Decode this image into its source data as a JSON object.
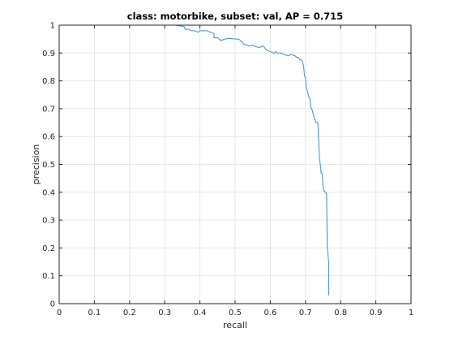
{
  "chart_data": {
    "type": "line",
    "title": "class: motorbike, subset: val, AP = 0.715",
    "xlabel": "recall",
    "ylabel": "precision",
    "xlim": [
      0,
      1
    ],
    "ylim": [
      0,
      1
    ],
    "xticks": [
      "0",
      "0.1",
      "0.2",
      "0.3",
      "0.4",
      "0.5",
      "0.6",
      "0.7",
      "0.8",
      "0.9",
      "1"
    ],
    "yticks": [
      "0",
      "0.1",
      "0.2",
      "0.3",
      "0.4",
      "0.5",
      "0.6",
      "0.7",
      "0.8",
      "0.9",
      "1"
    ],
    "grid": true,
    "line_color": "#3a8fd0",
    "series": [
      {
        "x": [
          0,
          0.05,
          0.1,
          0.15,
          0.2,
          0.25,
          0.3,
          0.33,
          0.355,
          0.358,
          0.37,
          0.375,
          0.385,
          0.395,
          0.4,
          0.42,
          0.43,
          0.44,
          0.44,
          0.45,
          0.455,
          0.46,
          0.47,
          0.48,
          0.49,
          0.5,
          0.51,
          0.52,
          0.525,
          0.53,
          0.54,
          0.55,
          0.56,
          0.57,
          0.58,
          0.59,
          0.6,
          0.61,
          0.615,
          0.62,
          0.63,
          0.64,
          0.65,
          0.66,
          0.67,
          0.675,
          0.68,
          0.685,
          0.69,
          0.693,
          0.695,
          0.697,
          0.7,
          0.702,
          0.704,
          0.706,
          0.708,
          0.71,
          0.712,
          0.714,
          0.716,
          0.718,
          0.72,
          0.722,
          0.724,
          0.726,
          0.728,
          0.73,
          0.735,
          0.74,
          0.742,
          0.744,
          0.744,
          0.746,
          0.748,
          0.75,
          0.752,
          0.754,
          0.756,
          0.758,
          0.76,
          0.762,
          0.764,
          0.765,
          0.766,
          0.766
        ],
        "y": [
          1.0,
          1.0,
          1.0,
          1.0,
          1.0,
          1.0,
          1.0,
          1.0,
          0.995,
          0.985,
          0.985,
          0.98,
          0.98,
          0.975,
          0.98,
          0.98,
          0.975,
          0.97,
          0.955,
          0.955,
          0.95,
          0.945,
          0.95,
          0.952,
          0.952,
          0.95,
          0.95,
          0.94,
          0.93,
          0.93,
          0.925,
          0.928,
          0.922,
          0.92,
          0.925,
          0.91,
          0.905,
          0.9,
          0.905,
          0.9,
          0.9,
          0.895,
          0.89,
          0.895,
          0.89,
          0.885,
          0.885,
          0.875,
          0.875,
          0.86,
          0.85,
          0.82,
          0.81,
          0.78,
          0.77,
          0.76,
          0.75,
          0.74,
          0.74,
          0.72,
          0.7,
          0.7,
          0.69,
          0.68,
          0.67,
          0.66,
          0.66,
          0.65,
          0.65,
          0.52,
          0.5,
          0.48,
          0.47,
          0.47,
          0.46,
          0.42,
          0.405,
          0.405,
          0.4,
          0.4,
          0.39,
          0.2,
          0.18,
          0.16,
          0.15,
          0.03
        ]
      }
    ]
  }
}
